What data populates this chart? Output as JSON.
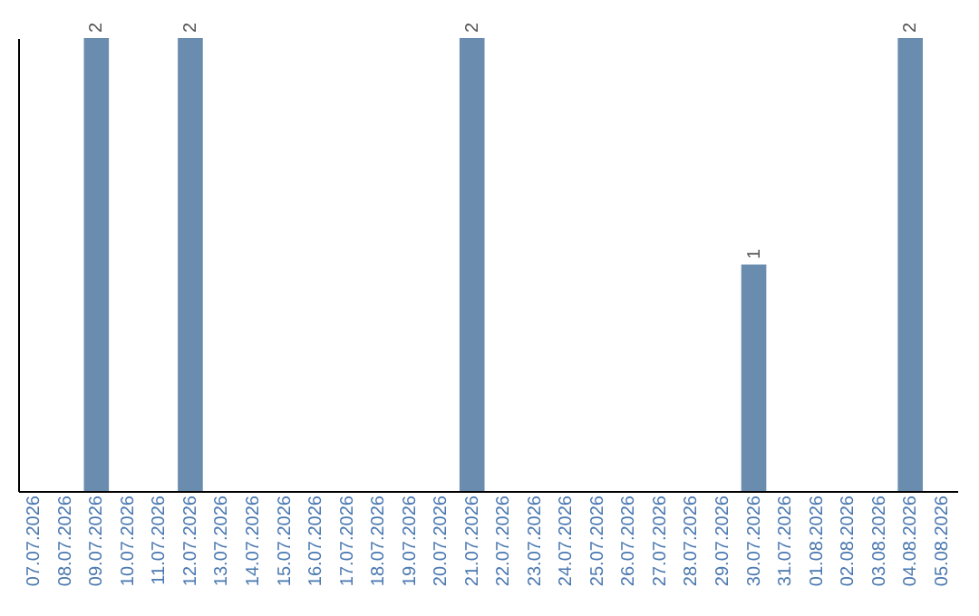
{
  "chart_data": {
    "type": "bar",
    "categories": [
      "07.07.2026",
      "08.07.2026",
      "09.07.2026",
      "10.07.2026",
      "11.07.2026",
      "12.07.2026",
      "13.07.2026",
      "14.07.2026",
      "15.07.2026",
      "16.07.2026",
      "17.07.2026",
      "18.07.2026",
      "19.07.2026",
      "20.07.2026",
      "21.07.2026",
      "22.07.2026",
      "23.07.2026",
      "24.07.2026",
      "25.07.2026",
      "26.07.2026",
      "27.07.2026",
      "28.07.2026",
      "29.07.2026",
      "30.07.2026",
      "31.07.2026",
      "01.08.2026",
      "02.08.2026",
      "03.08.2026",
      "04.08.2026",
      "05.08.2026"
    ],
    "values": [
      0,
      0,
      2,
      0,
      0,
      2,
      0,
      0,
      0,
      0,
      0,
      0,
      0,
      0,
      2,
      0,
      0,
      0,
      0,
      0,
      0,
      0,
      0,
      1,
      0,
      0,
      0,
      0,
      2,
      0
    ],
    "value_labels": [
      null,
      null,
      "2",
      null,
      null,
      "2",
      null,
      null,
      null,
      null,
      null,
      null,
      null,
      null,
      "2",
      null,
      null,
      null,
      null,
      null,
      null,
      null,
      null,
      "1",
      null,
      null,
      null,
      null,
      "2",
      null
    ],
    "color": "#6a8caf",
    "ylim": [
      0,
      2
    ],
    "tick_labels": "x"
  }
}
